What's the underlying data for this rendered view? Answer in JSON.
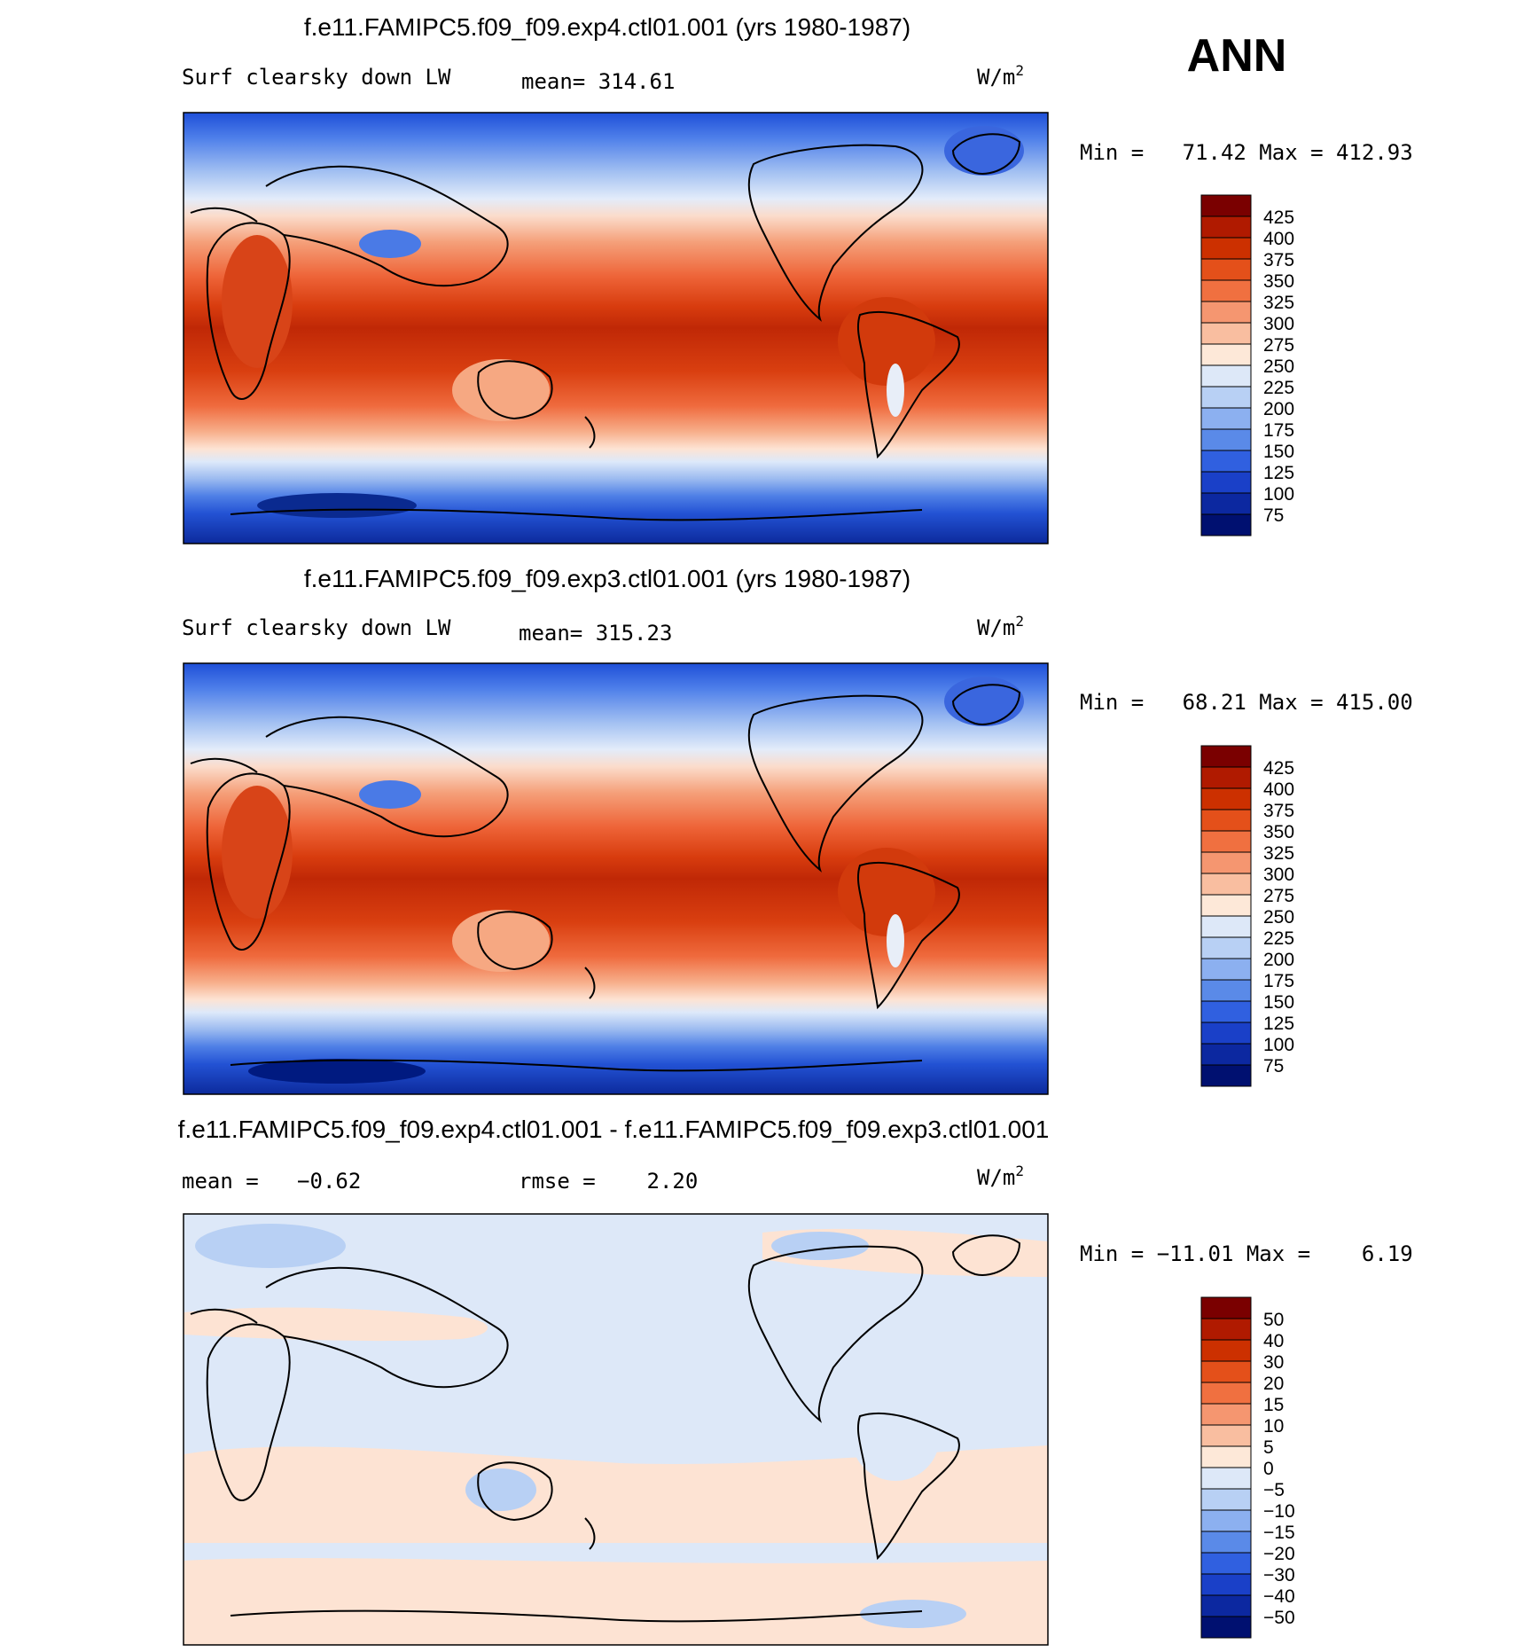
{
  "season": "ANN",
  "units_base": "W/m",
  "units_sup": "2",
  "panels": [
    {
      "title": "f.e11.FAMIPC5.f09_f09.exp4.ctl01.001 (yrs 1980-1987)",
      "left_label": "Surf clearsky down LW",
      "stat1": "mean= 314.61",
      "stat2": "",
      "minmax": "Min =   71.42 Max = 412.93",
      "kind": "abs"
    },
    {
      "title": "f.e11.FAMIPC5.f09_f09.exp3.ctl01.001 (yrs 1980-1987)",
      "left_label": "Surf clearsky down LW",
      "stat1": "mean= 315.23",
      "stat2": "",
      "minmax": "Min =   68.21 Max = 415.00",
      "kind": "abs"
    },
    {
      "title": "f.e11.FAMIPC5.f09_f09.exp4.ctl01.001 - f.e11.FAMIPC5.f09_f09.exp3.ctl01.001",
      "left_label": "mean =   −0.62",
      "stat1": "rmse =    2.20",
      "stat2": "",
      "minmax": "Min = −11.01 Max =    6.19",
      "kind": "diff"
    }
  ],
  "colorbars": {
    "abs": {
      "labels": [
        "425",
        "400",
        "375",
        "350",
        "325",
        "300",
        "275",
        "250",
        "225",
        "200",
        "175",
        "150",
        "125",
        "100",
        "75"
      ],
      "colors": [
        "#7a0000",
        "#b01a00",
        "#cc3000",
        "#e4501a",
        "#f07040",
        "#f59670",
        "#f9bea0",
        "#fde8d8",
        "#dde8f8",
        "#b8d0f4",
        "#8cb0f0",
        "#5a8ae8",
        "#3060e0",
        "#1a40c8",
        "#0c28a0",
        "#001070"
      ]
    },
    "diff": {
      "labels": [
        "50",
        "40",
        "30",
        "20",
        "15",
        "10",
        "5",
        "0",
        "−5",
        "−10",
        "−15",
        "−20",
        "−30",
        "−40",
        "−50"
      ],
      "colors": [
        "#7a0000",
        "#b01a00",
        "#cc3000",
        "#e4501a",
        "#f07040",
        "#f59670",
        "#f9bea0",
        "#fde8d8",
        "#dde8f8",
        "#b8d0f4",
        "#8cb0f0",
        "#5a8ae8",
        "#3060e0",
        "#1a40c8",
        "#0c28a0",
        "#001070"
      ]
    }
  }
}
